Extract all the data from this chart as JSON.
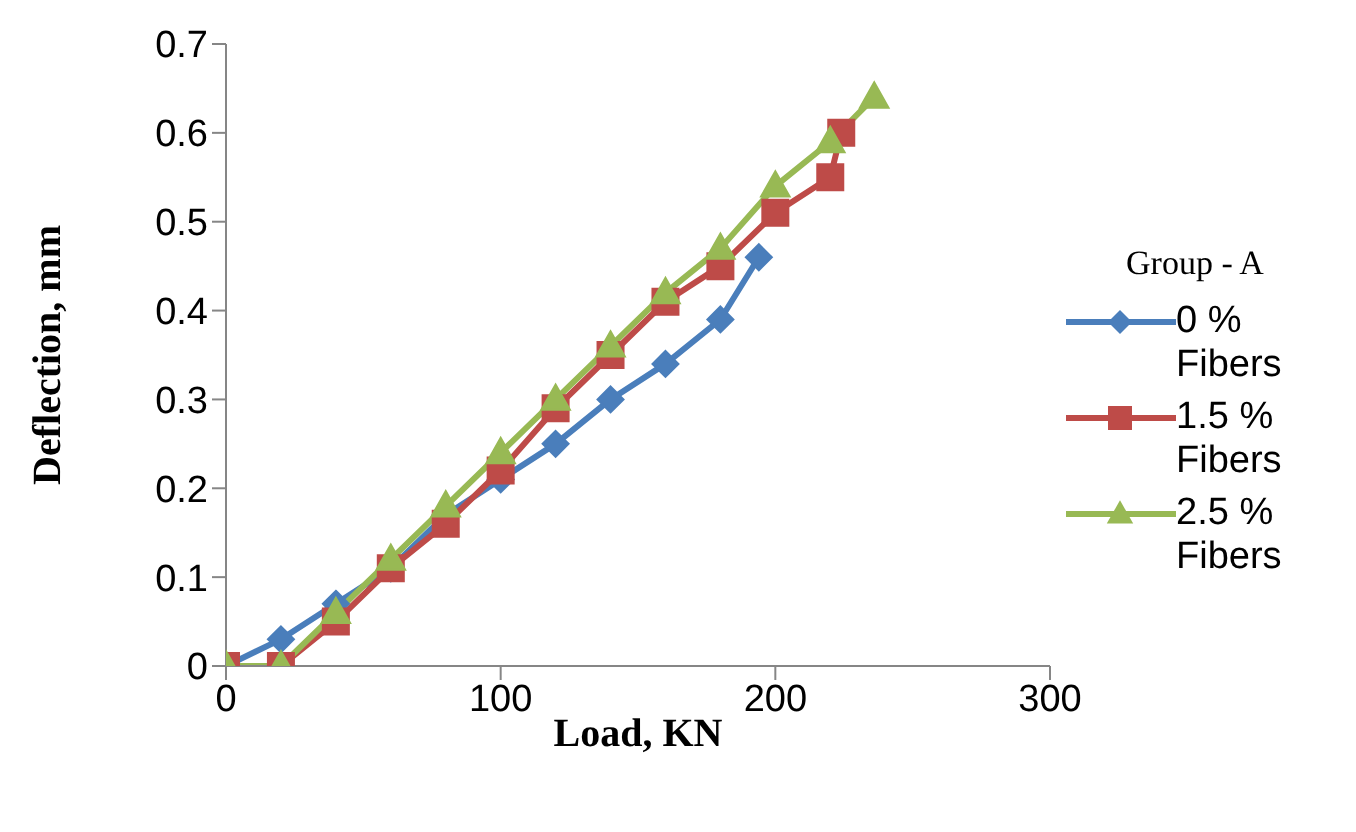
{
  "chart_data": {
    "type": "line",
    "xlabel": "Load, KN",
    "ylabel": "Deflection, mm",
    "legend_title": "Group - A",
    "legend": "right",
    "grid": false,
    "xlim": [
      0,
      300
    ],
    "xticks": [
      0,
      100,
      200,
      300
    ],
    "ylim": [
      0,
      0.7
    ],
    "yticks": [
      0,
      0.1,
      0.2,
      0.3,
      0.4,
      0.5,
      0.6,
      0.7
    ],
    "series": [
      {
        "name": "0 % Fibers",
        "color": "#4a7ebb",
        "marker": "diamond",
        "x": [
          0,
          20,
          40,
          60,
          80,
          100,
          120,
          140,
          160,
          180,
          194
        ],
        "values": [
          0,
          0.03,
          0.07,
          0.11,
          0.17,
          0.21,
          0.25,
          0.3,
          0.34,
          0.39,
          0.46
        ]
      },
      {
        "name": "1.5 % Fibers",
        "color": "#be4b48",
        "marker": "square",
        "x": [
          0,
          20,
          40,
          60,
          80,
          100,
          120,
          140,
          160,
          180,
          200,
          220,
          224
        ],
        "values": [
          0,
          0,
          0.05,
          0.11,
          0.16,
          0.22,
          0.29,
          0.35,
          0.41,
          0.45,
          0.51,
          0.55,
          0.6
        ]
      },
      {
        "name": "2.5 % Fibers",
        "color": "#98b954",
        "marker": "triangle",
        "x": [
          0,
          20,
          40,
          60,
          80,
          100,
          120,
          140,
          160,
          180,
          200,
          220,
          236
        ],
        "values": [
          0,
          0,
          0.06,
          0.12,
          0.18,
          0.24,
          0.3,
          0.36,
          0.42,
          0.47,
          0.54,
          0.59,
          0.64
        ]
      }
    ]
  }
}
